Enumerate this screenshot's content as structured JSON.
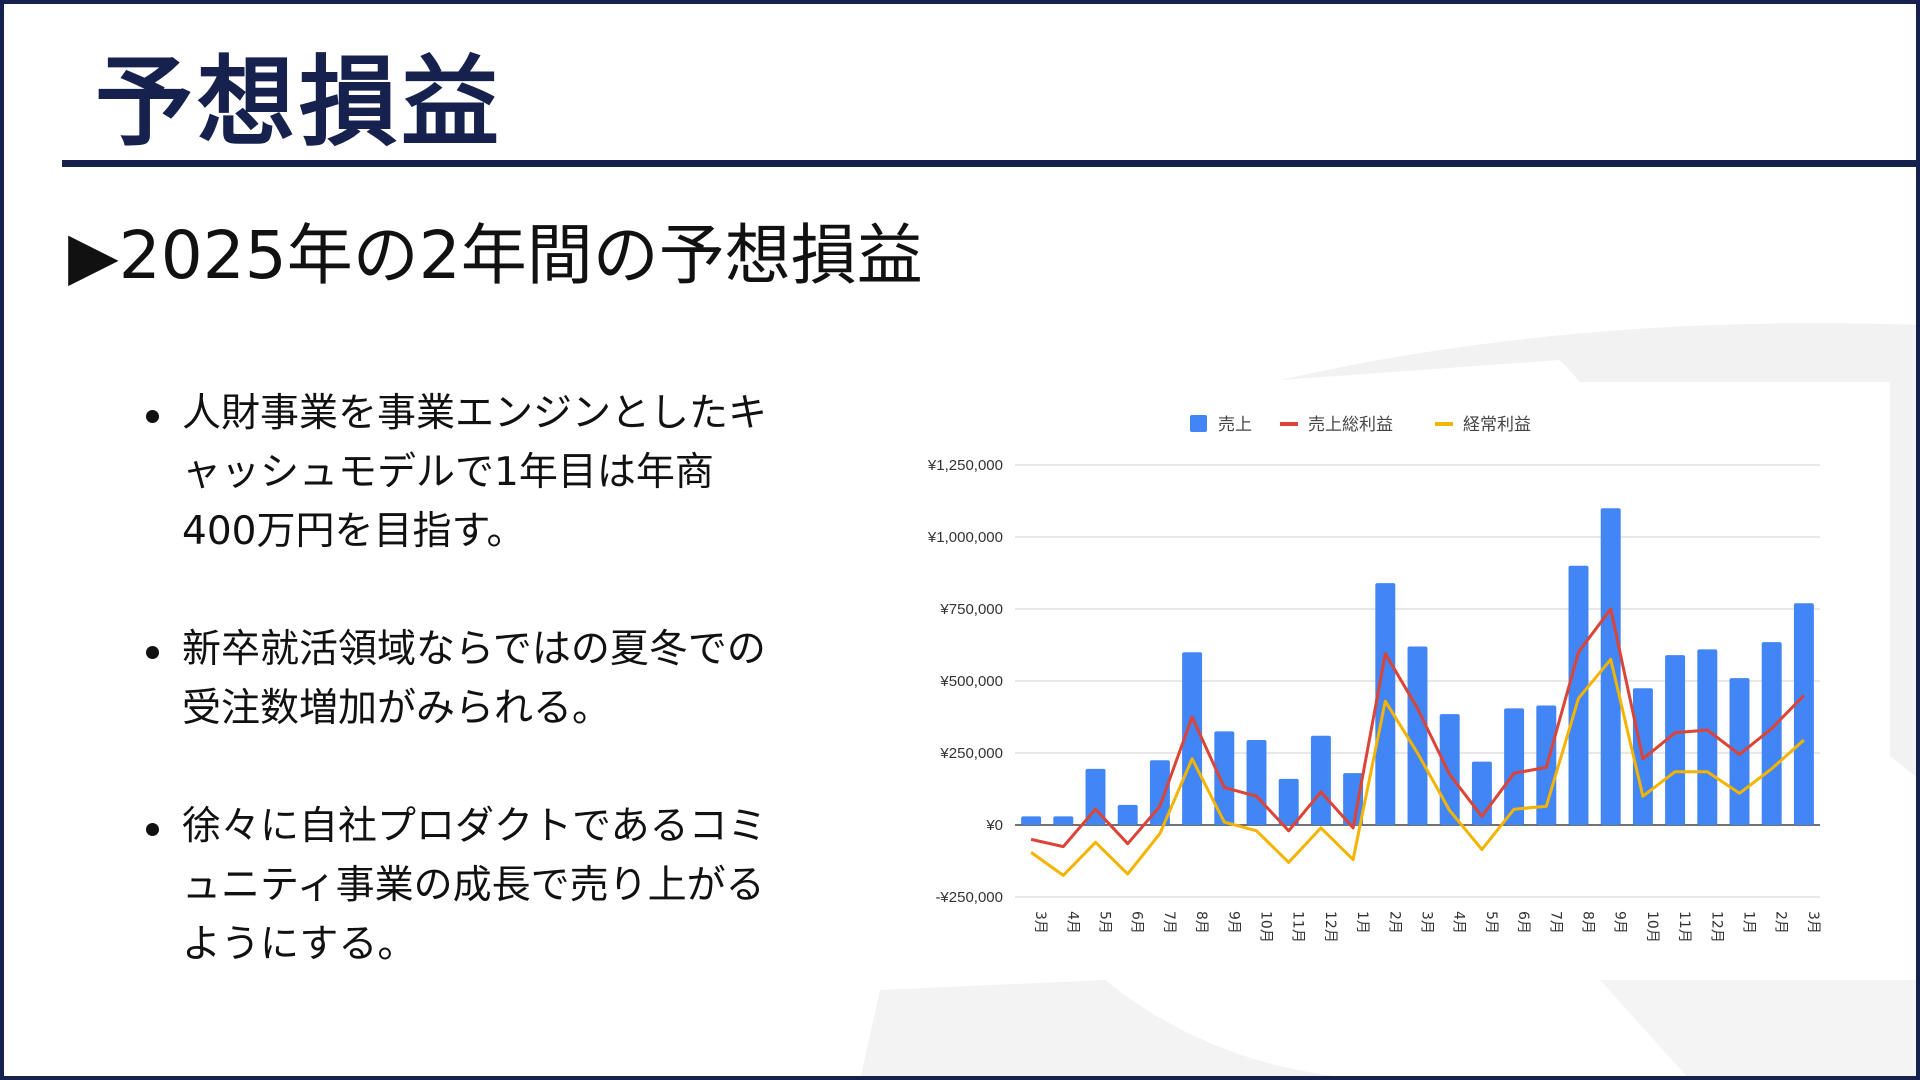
{
  "slide": {
    "title": "予想損益",
    "subtitle": "▶2025年の2年間の予想損益",
    "bullets": [
      "人財事業を事業エンジンとしたキャッシュモデルで1年目は年商400万円を目指す。",
      "新卒就活領域ならではの夏冬での受注数増加がみられる。",
      "徐々に自社プロダクトであるコミュニティ事業の成長で売り上がるようにする。"
    ]
  },
  "colors": {
    "navy": "#16224d",
    "sales": "#4285f4",
    "gross_profit": "#db4437",
    "ordinary_profit": "#f4b400"
  },
  "chart_data": {
    "type": "bar",
    "legend_position": "top",
    "grid": true,
    "categories": [
      "3月",
      "4月",
      "5月",
      "6月",
      "7月",
      "8月",
      "9月",
      "10月",
      "11月",
      "12月",
      "1月",
      "2月",
      "3月",
      "4月",
      "5月",
      "6月",
      "7月",
      "8月",
      "9月",
      "10月",
      "11月",
      "12月",
      "1月",
      "2月",
      "3月"
    ],
    "ylim": [
      -250000,
      1250000
    ],
    "yticks": [
      {
        "value": 1250000,
        "label": "¥1,250,000"
      },
      {
        "value": 1000000,
        "label": "¥1,000,000"
      },
      {
        "value": 750000,
        "label": "¥750,000"
      },
      {
        "value": 500000,
        "label": "¥500,000"
      },
      {
        "value": 250000,
        "label": "¥250,000"
      },
      {
        "value": 0,
        "label": "¥0"
      },
      {
        "value": -250000,
        "label": "-¥250,000"
      }
    ],
    "series": [
      {
        "name": "売上",
        "type": "bar",
        "color": "#4285f4",
        "values": [
          30000,
          30000,
          195000,
          70000,
          225000,
          600000,
          325000,
          295000,
          160000,
          310000,
          180000,
          840000,
          620000,
          385000,
          220000,
          405000,
          415000,
          900000,
          1100000,
          475000,
          590000,
          610000,
          510000,
          635000,
          770000
        ]
      },
      {
        "name": "売上総利益",
        "type": "line",
        "color": "#db4437",
        "values": [
          -50000,
          -75000,
          55000,
          -65000,
          65000,
          375000,
          130000,
          100000,
          -20000,
          115000,
          -10000,
          595000,
          405000,
          175000,
          30000,
          180000,
          200000,
          600000,
          750000,
          230000,
          320000,
          330000,
          245000,
          335000,
          450000
        ]
      },
      {
        "name": "経常利益",
        "type": "line",
        "color": "#f4b400",
        "values": [
          -95000,
          -175000,
          -60000,
          -170000,
          -30000,
          230000,
          10000,
          -20000,
          -130000,
          -10000,
          -120000,
          430000,
          250000,
          50000,
          -85000,
          55000,
          65000,
          440000,
          575000,
          100000,
          185000,
          185000,
          110000,
          195000,
          295000
        ]
      }
    ]
  }
}
